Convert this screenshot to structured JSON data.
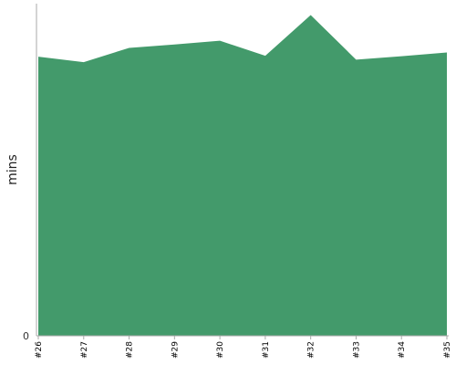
{
  "chart_data": {
    "type": "area",
    "categories": [
      "#26",
      "#27",
      "#28",
      "#29",
      "#30",
      "#31",
      "#32",
      "#33",
      "#34",
      "#35"
    ],
    "series": [
      {
        "values": [
          66.5,
          65.2,
          68.6,
          69.4,
          70.3,
          66.7,
          76.4,
          65.8,
          66.6,
          67.5
        ],
        "color": "#439a6b"
      }
    ],
    "xlabel": "",
    "ylabel": "mins",
    "ylim": [
      0,
      80
    ],
    "y_tick_labels": [
      "0"
    ],
    "grid": false,
    "legend": "none"
  }
}
